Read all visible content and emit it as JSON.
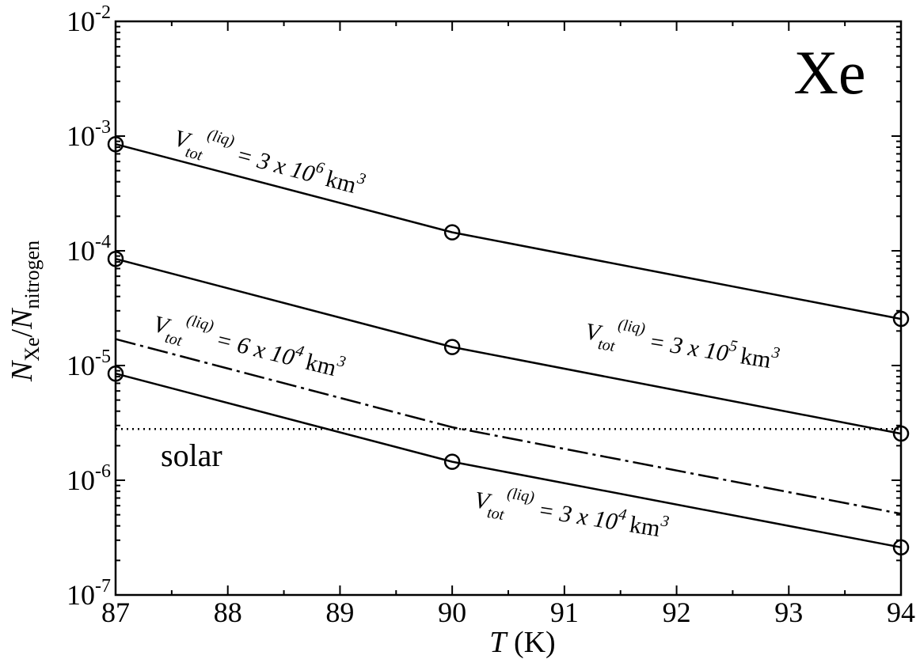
{
  "chart_data": {
    "type": "line",
    "title": "Xe",
    "xlabel": {
      "italic": "T",
      "unit": " (K)"
    },
    "ylabel": {
      "n1": "N",
      "sub1": "Xe",
      "sep": "/",
      "n2": "N",
      "sub2": "nitrogen"
    },
    "xlim": [
      87,
      94
    ],
    "ylim": [
      1e-07,
      0.01
    ],
    "yscale": "log",
    "x_ticks": [
      "87",
      "88",
      "89",
      "90",
      "91",
      "92",
      "93",
      "94"
    ],
    "y_ticks": [
      {
        "base": "10",
        "exp": "-7"
      },
      {
        "base": "10",
        "exp": "-6"
      },
      {
        "base": "10",
        "exp": "-5"
      },
      {
        "base": "10",
        "exp": "-4"
      },
      {
        "base": "10",
        "exp": "-3"
      },
      {
        "base": "10",
        "exp": "-2"
      }
    ],
    "series": [
      {
        "name": "V_tot^(liq) = 3 x 10^6 km^3",
        "style": "solid",
        "markers": true,
        "x": [
          87,
          90,
          94
        ],
        "y": [
          0.00085,
          0.000145,
          2.55e-05
        ]
      },
      {
        "name": "V_tot^(liq) = 3 x 10^5 km^3",
        "style": "solid",
        "markers": true,
        "x": [
          87,
          90,
          94
        ],
        "y": [
          8.5e-05,
          1.45e-05,
          2.55e-06
        ]
      },
      {
        "name": "V_tot^(liq) = 3 x 10^4 km^3",
        "style": "solid",
        "markers": true,
        "x": [
          87,
          90,
          94
        ],
        "y": [
          8.5e-06,
          1.45e-06,
          2.6e-07
        ]
      },
      {
        "name": "V_tot^(liq) = 6 x 10^4 km^3",
        "style": "dashdot",
        "markers": false,
        "x": [
          87,
          90,
          94
        ],
        "y": [
          1.7e-05,
          2.9e-06,
          5.1e-07
        ]
      },
      {
        "name": "solar",
        "style": "dotted",
        "markers": false,
        "x": [
          87,
          94
        ],
        "y": [
          2.8e-06,
          2.8e-06
        ]
      }
    ],
    "annotations": [
      {
        "id": "a3e6",
        "V": "V",
        "sub": "tot",
        "sup": "(liq)",
        "eq": " = 3 x 10",
        "pow": "6",
        "unit": "km",
        "unitpow": "3"
      },
      {
        "id": "a3e5",
        "V": "V",
        "sub": "tot",
        "sup": "(liq)",
        "eq": " = 3 x 10",
        "pow": "5",
        "unit": "km",
        "unitpow": "3"
      },
      {
        "id": "a6e4",
        "V": "V",
        "sub": "tot",
        "sup": "(liq)",
        "eq": " = 6 x 10",
        "pow": "4",
        "unit": "km",
        "unitpow": "3"
      },
      {
        "id": "a3e4",
        "V": "V",
        "sub": "tot",
        "sup": "(liq)",
        "eq": " = 3 x 10",
        "pow": "4",
        "unit": "km",
        "unitpow": "3"
      }
    ],
    "solar_label": "solar",
    "grid": false,
    "legend": "none"
  }
}
